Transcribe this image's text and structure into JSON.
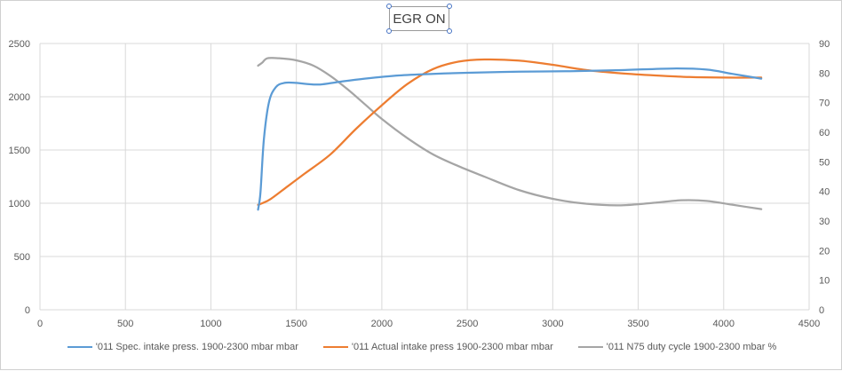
{
  "chart_data": {
    "type": "line",
    "title": "EGR ON",
    "xlim": [
      0,
      4500
    ],
    "x_ticks": [
      "0",
      "500",
      "1000",
      "1500",
      "2000",
      "2500",
      "3000",
      "3500",
      "4000",
      "4500"
    ],
    "ylim_left": [
      0,
      2500
    ],
    "y_ticks_left": [
      "0",
      "500",
      "1000",
      "1500",
      "2000",
      "2500"
    ],
    "ylim_right": [
      0,
      90
    ],
    "y_ticks_right": [
      "0",
      "10",
      "20",
      "30",
      "40",
      "50",
      "60",
      "70",
      "80",
      "90"
    ],
    "grid": true,
    "legend_position": "bottom",
    "series": [
      {
        "name": "'011 Spec. intake press. 1900-2300 mbar  mbar",
        "axis": "left",
        "color": "#5b9bd5",
        "x": [
          1276,
          1290,
          1310,
          1340,
          1380,
          1430,
          1500,
          1560,
          1640,
          1750,
          1900,
          2100,
          2300,
          2500,
          2800,
          3100,
          3400,
          3700,
          3900,
          4050,
          4220
        ],
        "y": [
          940,
          1100,
          1600,
          1950,
          2090,
          2130,
          2130,
          2120,
          2115,
          2140,
          2170,
          2200,
          2215,
          2225,
          2235,
          2240,
          2250,
          2265,
          2255,
          2215,
          2170
        ]
      },
      {
        "name": "'011 Actual intake press 1900-2300 mbar  mbar",
        "axis": "left",
        "color": "#ed7d31",
        "x": [
          1276,
          1300,
          1350,
          1450,
          1550,
          1700,
          1850,
          2000,
          2150,
          2300,
          2450,
          2600,
          2800,
          3000,
          3200,
          3400,
          3600,
          3800,
          4000,
          4220
        ],
        "y": [
          985,
          1000,
          1040,
          1160,
          1280,
          1460,
          1700,
          1920,
          2120,
          2260,
          2330,
          2350,
          2340,
          2300,
          2250,
          2220,
          2200,
          2185,
          2180,
          2180
        ]
      },
      {
        "name": "'011 N75 duty cycle 1900-2300 mbar  %",
        "axis": "right",
        "color": "#a5a5a5",
        "x": [
          1276,
          1300,
          1330,
          1400,
          1500,
          1600,
          1700,
          1800,
          1900,
          2000,
          2150,
          2300,
          2450,
          2600,
          2800,
          3000,
          3200,
          3400,
          3600,
          3750,
          3900,
          4050,
          4220
        ],
        "y": [
          82.5,
          83.5,
          85,
          85,
          84.3,
          82.5,
          79,
          74.5,
          69.5,
          64.5,
          58,
          52.5,
          48.5,
          45,
          40.5,
          37.5,
          35.8,
          35.3,
          36.2,
          37,
          36.8,
          35.5,
          34
        ]
      }
    ]
  }
}
